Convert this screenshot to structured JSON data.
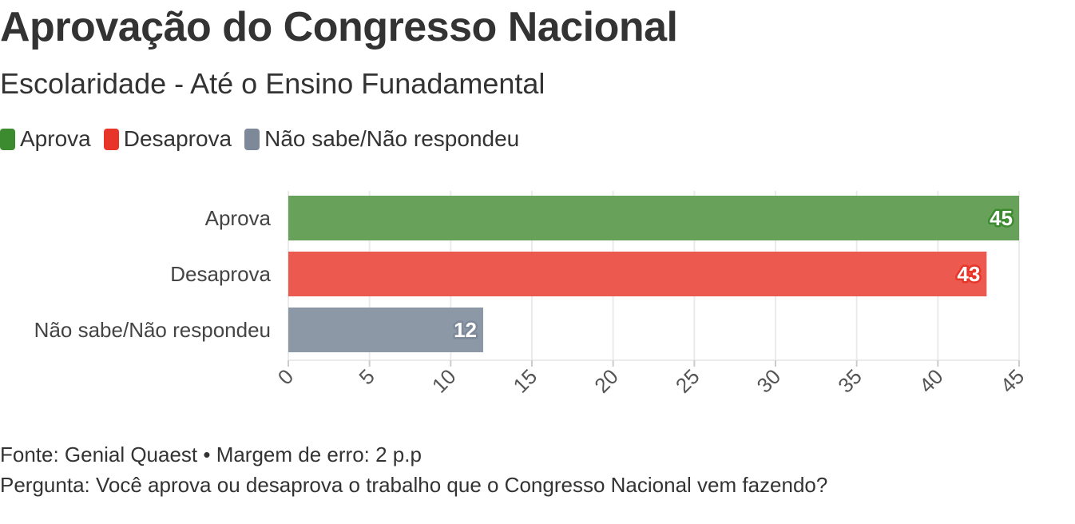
{
  "title": "Aprovação do Congresso Nacional",
  "subtitle": "Escolaridade - Até o Ensino Funadamental",
  "legend": [
    {
      "label": "Aprova",
      "color": "#3d8b2f"
    },
    {
      "label": "Desaprova",
      "color": "#e8352a"
    },
    {
      "label": "Não sabe/Não respondeu",
      "color": "#7d8899"
    }
  ],
  "footer": {
    "source": "Fonte: Genial Quaest • Margem de erro: 2 p.p",
    "question": "Pergunta: Você aprova ou desaprova o trabalho que o Congresso Nacional vem fazendo?"
  },
  "chart_data": {
    "type": "bar",
    "orientation": "horizontal",
    "categories": [
      "Aprova",
      "Desaprova",
      "Não sabe/Não respondeu"
    ],
    "values": [
      45,
      43,
      12
    ],
    "colors": [
      "#68a25a",
      "#ec5a4f",
      "#8d98a6"
    ],
    "label_colors": [
      "#3d8b2f",
      "#e8352a",
      "#7d8899"
    ],
    "xlim": [
      0,
      45
    ],
    "xticks": [
      0,
      5,
      10,
      15,
      20,
      25,
      30,
      35,
      40,
      45
    ],
    "grid": true
  }
}
